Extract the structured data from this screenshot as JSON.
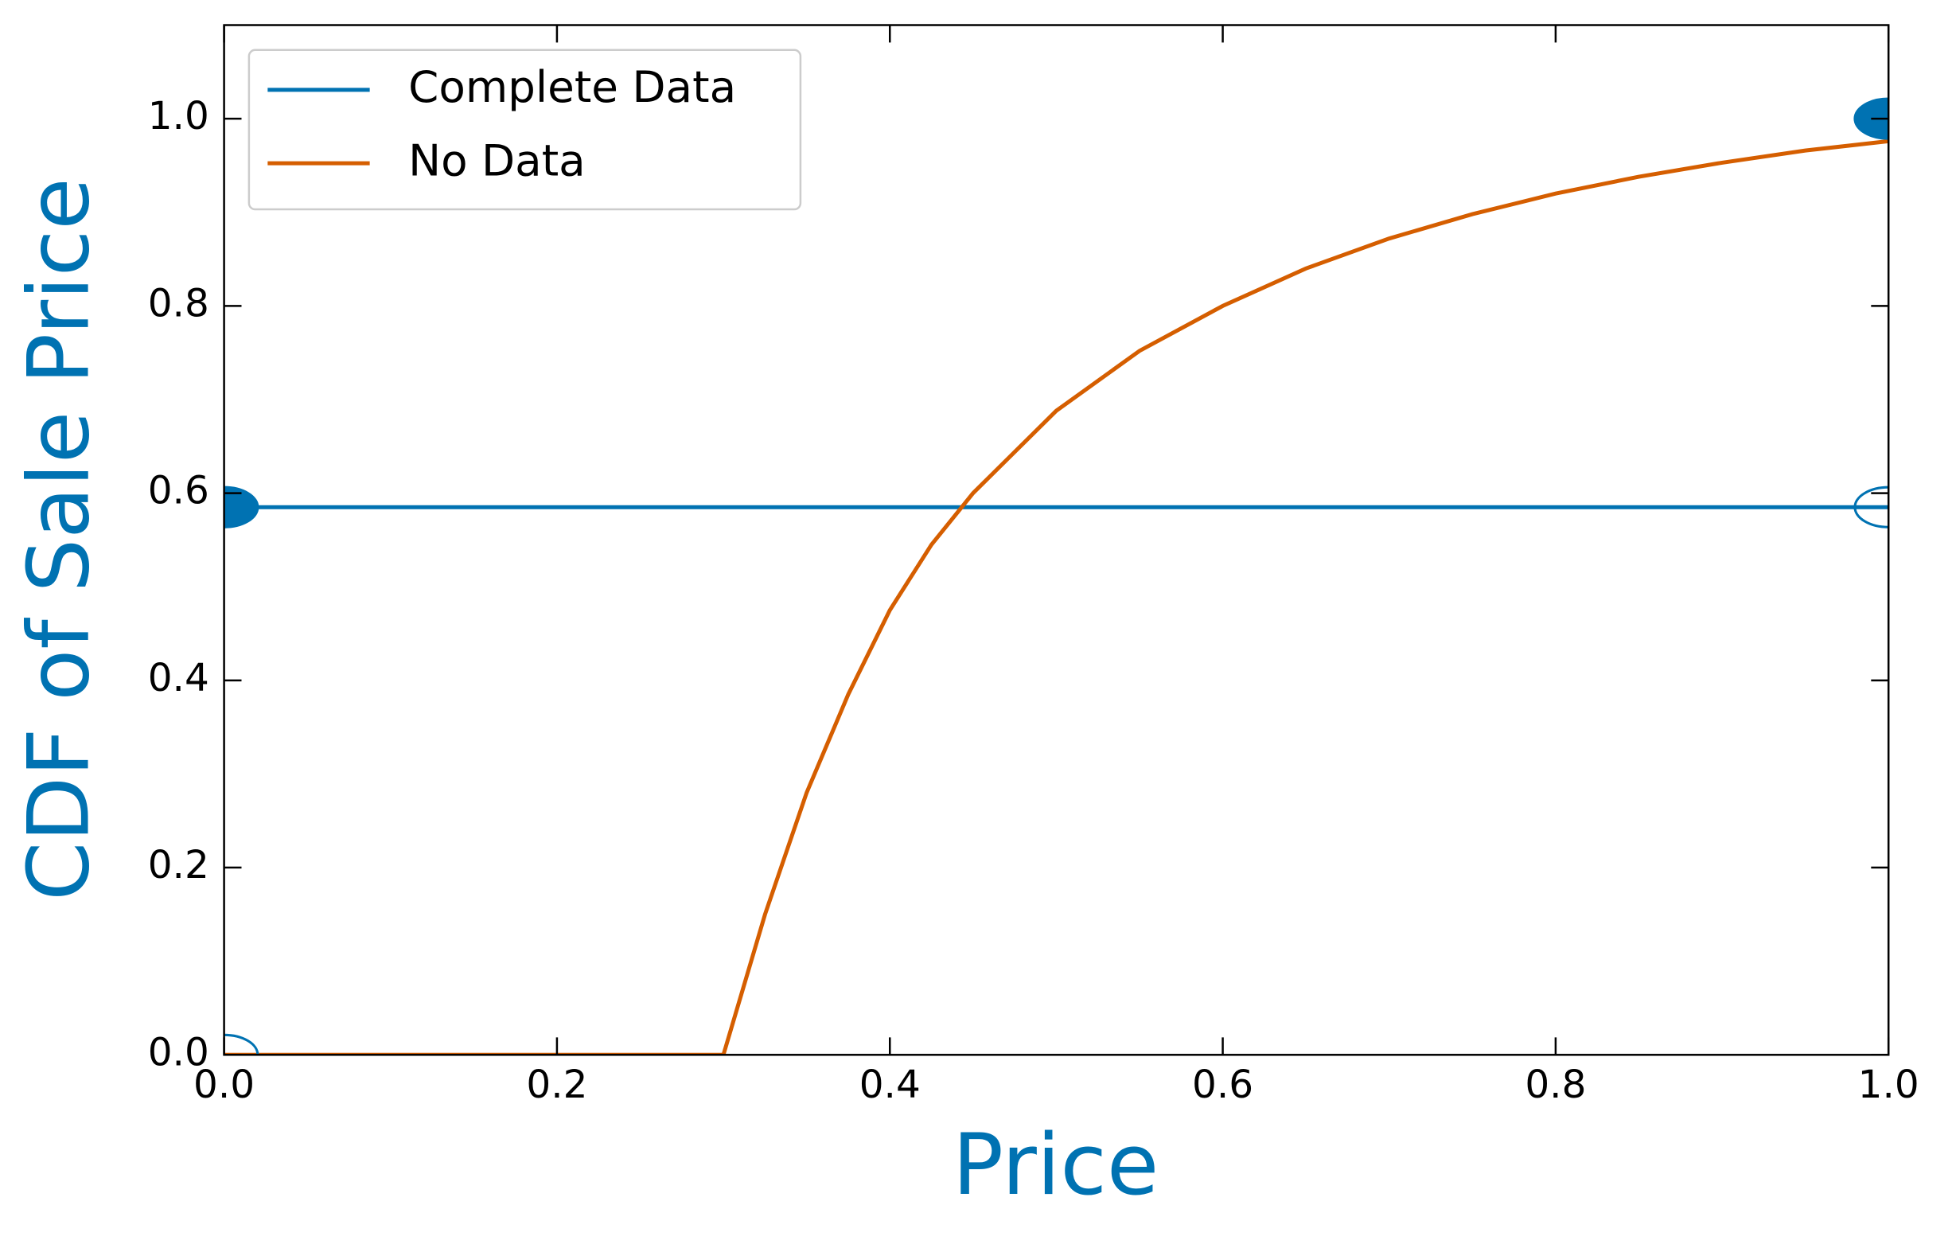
{
  "chart_data": {
    "type": "line",
    "xlabel": "Price",
    "ylabel": "CDF of Sale Price",
    "xlim": [
      0,
      1.0
    ],
    "ylim": [
      0,
      1.1
    ],
    "xticks": [
      {
        "value": 0,
        "label": "0.0"
      },
      0.2,
      0.4,
      0.6,
      0.8,
      {
        "value": 1,
        "label": "1.0"
      }
    ],
    "yticks": [
      {
        "value": 0,
        "label": "0.0"
      },
      0.2,
      0.4,
      0.6,
      0.8,
      {
        "value": 1,
        "label": "1.0"
      }
    ],
    "label_color": "#0072b2",
    "legend": "upper left",
    "series": [
      {
        "name": "Complete Data",
        "color": "#0072b2",
        "x": [
          0,
          1
        ],
        "values": [
          0.585,
          0.585
        ]
      },
      {
        "name": "No Data",
        "color": "#d55e00",
        "x": [
          0,
          0.3,
          0.325,
          0.35,
          0.375,
          0.4,
          0.425,
          0.45,
          0.5,
          0.55,
          0.6,
          0.65,
          0.7,
          0.75,
          0.8,
          0.85,
          0.9,
          0.95,
          1.0
        ],
        "values": [
          0,
          0,
          0.15,
          0.28,
          0.385,
          0.475,
          0.545,
          0.6,
          0.688,
          0.752,
          0.8,
          0.84,
          0.872,
          0.898,
          0.92,
          0.938,
          0.953,
          0.966,
          0.976
        ]
      }
    ],
    "filled_points": {
      "color": "#0072b2",
      "x": [
        0,
        1
      ],
      "values": [
        0.585,
        1.0
      ]
    },
    "open_points": {
      "color": "#0072b2",
      "x": [
        0,
        1
      ],
      "values": [
        0,
        0.585
      ]
    }
  }
}
